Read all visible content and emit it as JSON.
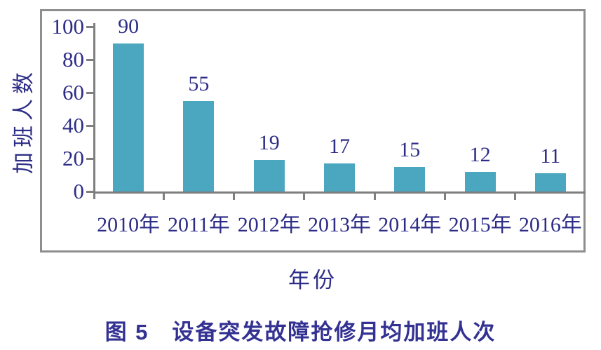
{
  "figure": {
    "caption": "图 5　设备突发故障抢修月均加班人次"
  },
  "chart_data": {
    "type": "bar",
    "title": "图 5　设备突发故障抢修月均加班人次",
    "xlabel": "年份",
    "ylabel": "加班人数",
    "categories": [
      "2010年",
      "2011年",
      "2012年",
      "2013年",
      "2014年",
      "2015年",
      "2016年"
    ],
    "values": [
      90,
      55,
      19,
      17,
      15,
      12,
      11
    ],
    "yticks": [
      0,
      20,
      40,
      60,
      80,
      100
    ],
    "ylim": [
      0,
      100
    ],
    "grid": false,
    "legend": "none",
    "data_labels": true,
    "colors": {
      "bar": "#4aa7bf",
      "label_text": "#2d2d87",
      "axis": "#7f7f7f",
      "frame": "#8e8e8e",
      "caption_text": "#333192",
      "background": "#ffffff"
    }
  }
}
